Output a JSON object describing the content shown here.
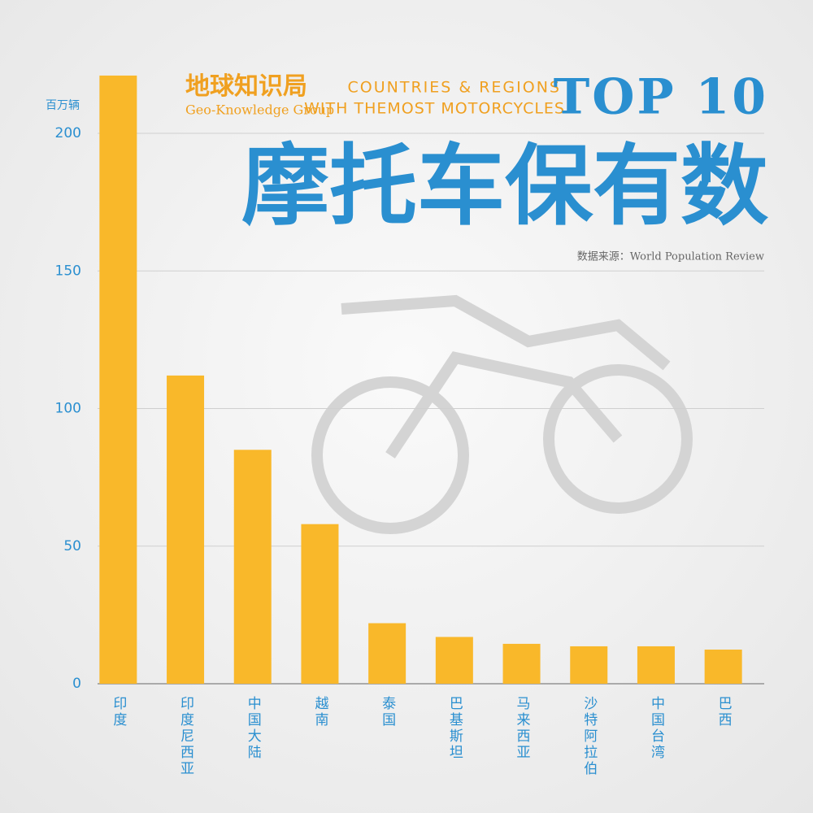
{
  "chart_data": {
    "type": "bar",
    "title": "摩托车保有数",
    "top_label": "TOP 10",
    "subtitle_line1": "COUNTRIES & REGIONS",
    "subtitle_line2": "WITH THEMOST MOTORCYCLES",
    "brand": "地球知识局",
    "brand_en": "Geo-Knowledge Group",
    "source": "数据来源：World Population Review",
    "y_label": "百万辆",
    "categories": [
      "印度",
      "印度尼西亚",
      "中国大陆",
      "越南",
      "泰国",
      "巴基斯坦",
      "马来西亚",
      "沙特阿拉伯",
      "中国台湾",
      "巴西"
    ],
    "values": [
      221,
      112,
      85,
      58,
      22,
      17,
      14.5,
      13.6,
      13.6,
      12.4
    ],
    "color": "#f9b82a",
    "ylim": [
      0,
      225
    ],
    "yticks": [
      0,
      50,
      100,
      150,
      200
    ],
    "grid": true
  }
}
